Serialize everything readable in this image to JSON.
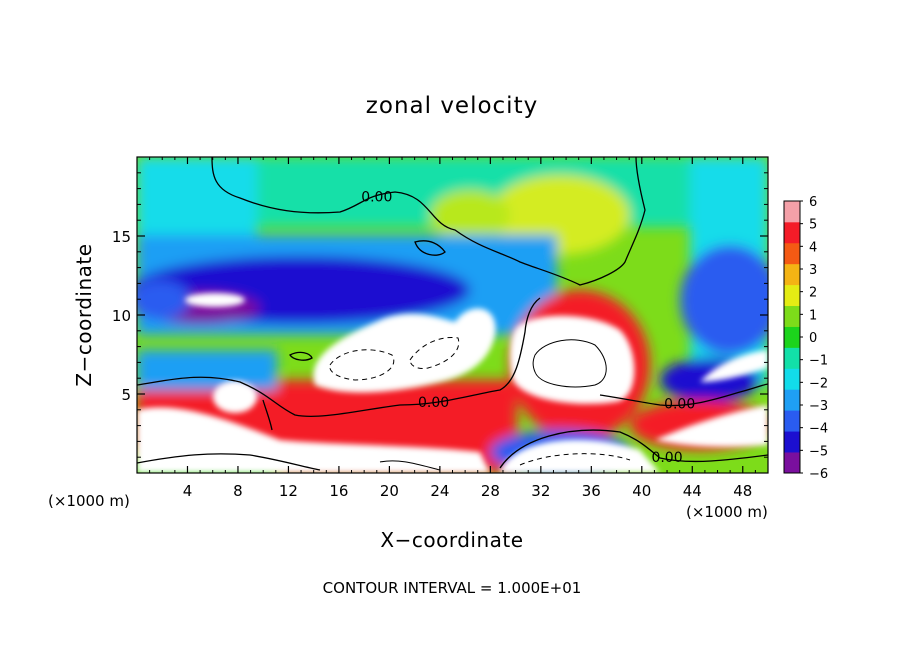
{
  "chart_data": {
    "type": "heatmap",
    "title": "zonal velocity",
    "xlabel": "X−coordinate",
    "ylabel": "Z−coordinate",
    "x_unit_left": "(×1000 m)",
    "x_unit_right": "(×1000 m)",
    "xlim": [
      0,
      50
    ],
    "ylim": [
      0,
      20
    ],
    "x_ticks": [
      4,
      8,
      12,
      16,
      20,
      24,
      28,
      32,
      36,
      40,
      44,
      48
    ],
    "x_tick_labels": [
      "4",
      "8",
      "12",
      "16",
      "20",
      "24",
      "28",
      "32",
      "36",
      "40",
      "44",
      "48"
    ],
    "y_ticks": [
      5,
      10,
      15
    ],
    "y_tick_labels": [
      "5",
      "10",
      "15"
    ],
    "colorbar": {
      "min": -6,
      "max": 6,
      "ticks": [
        6,
        5,
        4,
        3,
        2,
        1,
        0,
        -1,
        -2,
        -3,
        -4,
        -5,
        -6
      ],
      "tick_labels": [
        "6",
        "5",
        "4",
        "3",
        "2",
        "1",
        "0",
        "−1",
        "−2",
        "−3",
        "−4",
        "−5",
        "−6"
      ],
      "colors": [
        "#7a0f9e",
        "#1c0fd0",
        "#2a5cf0",
        "#1f9ff4",
        "#12dcea",
        "#12e0a8",
        "#1cd41c",
        "#7ddc1a",
        "#e4ec14",
        "#f4b414",
        "#f45a14",
        "#f41c28",
        "#f4a0a8"
      ],
      "saturated_color": "#ffffff"
    },
    "contour_labels": [
      {
        "text": "0.00",
        "x": 19,
        "z": 17.5
      },
      {
        "text": "0.00",
        "x": 23.5,
        "z": 4.5
      },
      {
        "text": "0.00",
        "x": 43,
        "z": 4.4
      },
      {
        "text": "0.00",
        "x": 42,
        "z": 1.0
      }
    ],
    "footer": "CONTOUR INTERVAL = 1.000E+01"
  }
}
